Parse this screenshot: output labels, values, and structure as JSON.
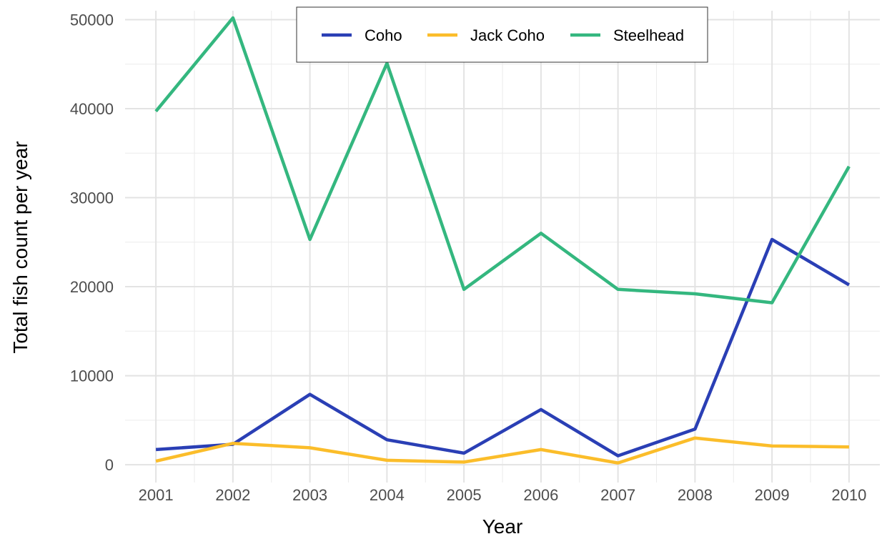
{
  "chart_data": {
    "type": "line",
    "title": "",
    "xlabel": "Year",
    "ylabel": "Total fish count per year",
    "x": [
      2001,
      2002,
      2003,
      2004,
      2005,
      2006,
      2007,
      2008,
      2009,
      2010
    ],
    "xlim": [
      2000.6,
      2010.4
    ],
    "ylim": [
      -2000,
      51000
    ],
    "yticks": [
      0,
      10000,
      20000,
      30000,
      40000,
      50000
    ],
    "ytick_labels": [
      "0",
      "10000",
      "20000",
      "30000",
      "40000",
      "50000"
    ],
    "xtick_labels": [
      "2001",
      "2002",
      "2003",
      "2004",
      "2005",
      "2006",
      "2007",
      "2008",
      "2009",
      "2010"
    ],
    "grid": true,
    "legend_position": "top",
    "series": [
      {
        "name": "Coho",
        "color": "#2a3fb5",
        "values": [
          1700,
          2300,
          7900,
          2800,
          1300,
          6200,
          1000,
          4000,
          25300,
          20200
        ]
      },
      {
        "name": "Jack Coho",
        "color": "#fbbd2a",
        "values": [
          400,
          2400,
          1900,
          500,
          300,
          1700,
          200,
          3000,
          2100,
          2000
        ]
      },
      {
        "name": "Steelhead",
        "color": "#34b77f",
        "values": [
          39700,
          50200,
          25300,
          45100,
          19700,
          26000,
          19700,
          19200,
          18200,
          33500
        ]
      }
    ]
  }
}
